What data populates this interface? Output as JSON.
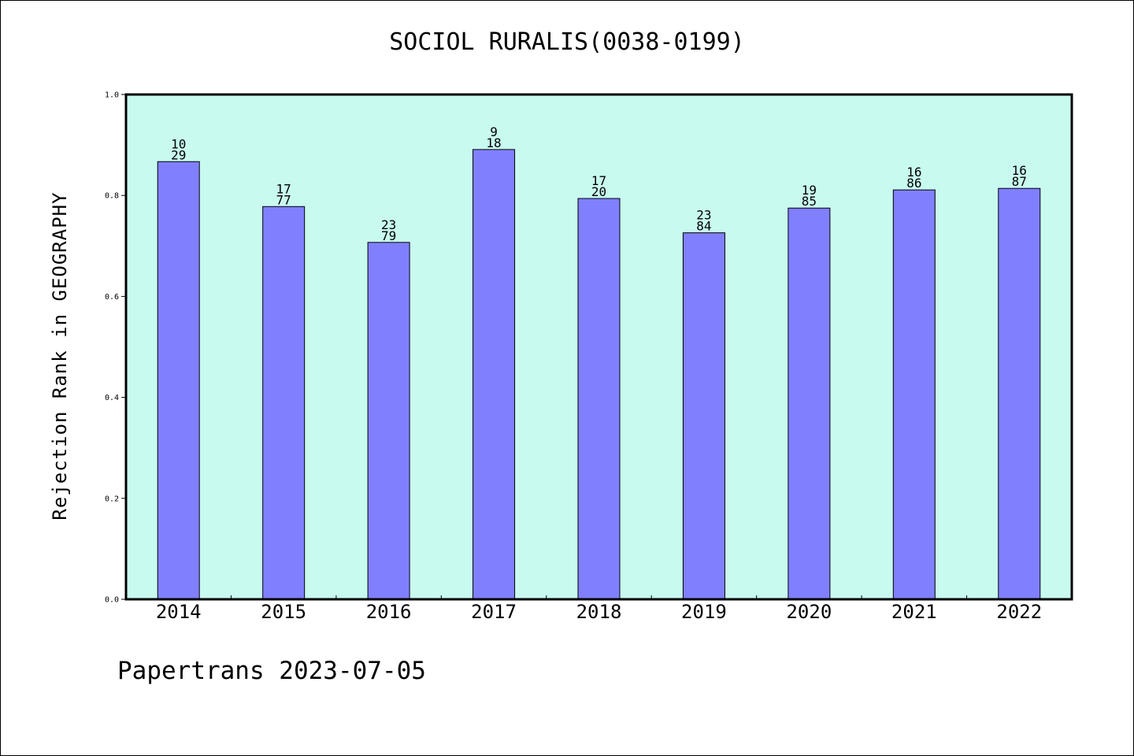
{
  "page": {
    "footer": "Papertrans 2023-07-05"
  },
  "colors": {
    "plot_background": "#c8faf0",
    "bar_fill": "#8080ff",
    "bar_stroke": "#000000",
    "axis": "#000000",
    "page_background": "#ffffff"
  },
  "chart_data": {
    "type": "bar",
    "title": "SOCIOL RURALIS(0038-0199)",
    "xlabel": "",
    "ylabel": "Rejection Rank in GEOGRAPHY",
    "ylim": [
      0,
      1.0
    ],
    "yticks": [
      "0.0",
      "0.2",
      "0.4",
      "0.6",
      "0.8",
      "1.0"
    ],
    "grid": false,
    "legend": "none",
    "categories": [
      "2014",
      "2015",
      "2016",
      "2017",
      "2018",
      "2019",
      "2020",
      "2021",
      "2022"
    ],
    "values": [
      0.867,
      0.778,
      0.707,
      0.891,
      0.794,
      0.726,
      0.775,
      0.811,
      0.814
    ],
    "data_labels": [
      [
        "10",
        "29"
      ],
      [
        "17",
        "77"
      ],
      [
        "23",
        "79"
      ],
      [
        "9",
        "18"
      ],
      [
        "17",
        "20"
      ],
      [
        "23",
        "84"
      ],
      [
        "19",
        "85"
      ],
      [
        "16",
        "86"
      ],
      [
        "16",
        "87"
      ]
    ]
  }
}
